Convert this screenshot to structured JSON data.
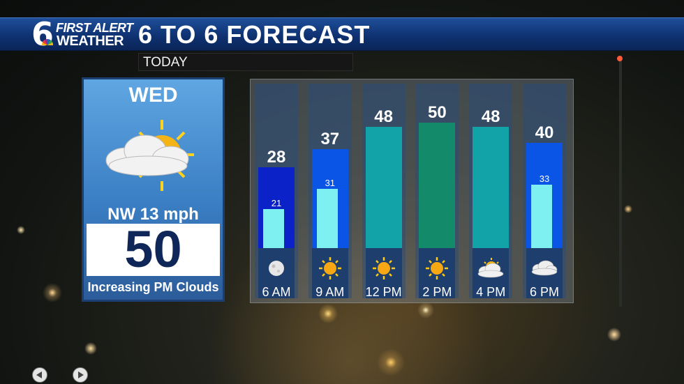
{
  "header": {
    "logo_number": "6",
    "logo_line1": "FIRST ALERT",
    "logo_line2": "WEATHER",
    "title": "6 TO 6 FORECAST"
  },
  "subheader": {
    "label": "TODAY"
  },
  "day_panel": {
    "day": "WED",
    "icon": "sun-behind-cloud-icon",
    "wind": "NW 13 mph",
    "high": "50",
    "condition": "Increasing PM Clouds"
  },
  "colors": {
    "cold": "#0a22c8",
    "cool": "#0a55e6",
    "mild": "#12a3a8",
    "warm": "#138a6a",
    "low_bar": "#7ff0f2",
    "header": "#0f3272"
  },
  "chart_data": {
    "type": "bar",
    "categories": [
      "6 AM",
      "9 AM",
      "12 PM",
      "2 PM",
      "4 PM",
      "6 PM"
    ],
    "series": [
      {
        "values": [
          28,
          37,
          48,
          50,
          48,
          40
        ]
      },
      {
        "values": [
          21,
          31,
          null,
          null,
          null,
          33
        ]
      }
    ],
    "ylim": [
      0,
      60
    ],
    "icons": [
      "moon-icon",
      "sun-icon",
      "sun-icon",
      "sun-icon",
      "sun-behind-cloud-icon",
      "cloud-icon"
    ],
    "bar_colors": [
      "#0a22c8",
      "#0a55e6",
      "#12a3a8",
      "#138a6a",
      "#12a3a8",
      "#0a55e6"
    ]
  }
}
